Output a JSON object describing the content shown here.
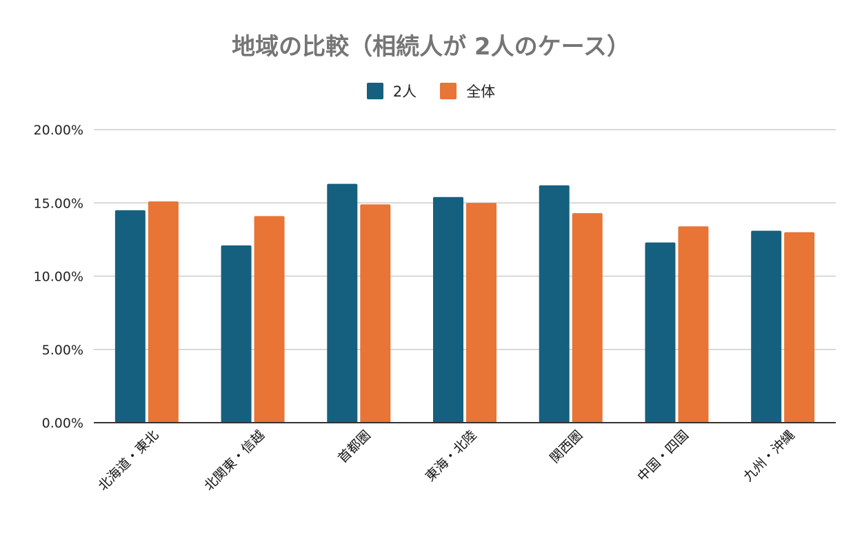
{
  "chart_data": {
    "type": "bar",
    "title": "地域の比較（相続人が 2人のケース）",
    "categories": [
      "北海道・東北",
      "北関東・信越",
      "首都圏",
      "東海・北陸",
      "関西圏",
      "中国・四国",
      "九州・沖縄"
    ],
    "series": [
      {
        "name": "2人",
        "color": "#16607f",
        "values": [
          14.5,
          12.1,
          16.3,
          15.4,
          16.2,
          12.3,
          13.1
        ]
      },
      {
        "name": "全体",
        "color": "#e87435",
        "values": [
          15.1,
          14.1,
          14.9,
          15.0,
          14.3,
          13.4,
          13.0
        ]
      }
    ],
    "yticks": [
      "0.00%",
      "5.00%",
      "10.00%",
      "15.00%",
      "20.00%"
    ],
    "ylim": [
      0,
      20
    ],
    "xlabel": "",
    "ylabel": "",
    "grid": true,
    "legend_position": "top-center"
  }
}
